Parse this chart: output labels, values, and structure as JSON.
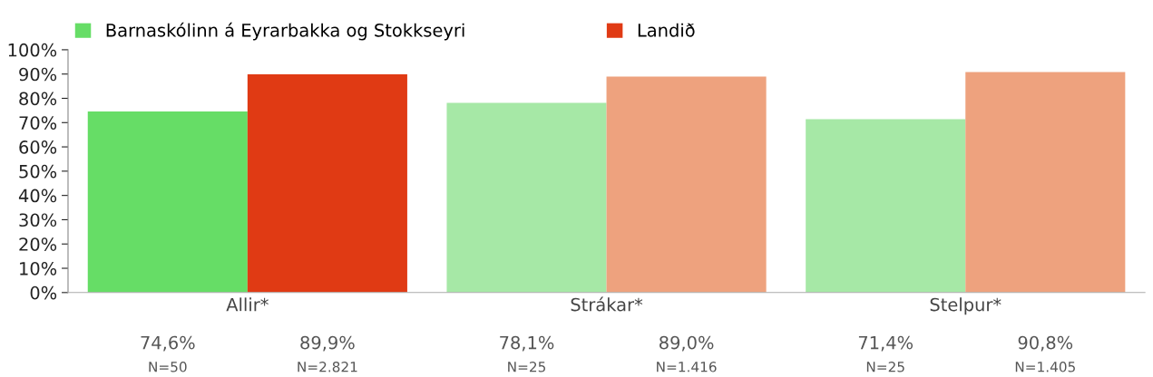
{
  "chart_data": {
    "type": "bar",
    "categories": [
      "Allir*",
      "Strákar*",
      "Stelpur*"
    ],
    "series": [
      {
        "name": "Barnaskólinn á Eyrarbakka og Stokkseyri",
        "color": "#66dd66",
        "colors": [
          "#66dd66",
          "#a6e8a6",
          "#a6e8a6"
        ],
        "values": [
          74.6,
          78.1,
          71.4
        ],
        "value_labels": [
          "74,6%\nN=50",
          "78,1%\nN=25",
          "71,4%\nN=25"
        ]
      },
      {
        "name": "Landið",
        "color": "#e03a14",
        "colors": [
          "#e03a14",
          "#eea27e",
          "#eea27e"
        ],
        "values": [
          89.9,
          89.0,
          90.8
        ],
        "value_labels": [
          "89,9%\nN=2.821",
          "89,0%\nN=1.416",
          "90,8%\nN=1.405"
        ]
      }
    ],
    "ylim": [
      0,
      100
    ],
    "yticks": [
      {
        "value": 0,
        "label": "0%"
      },
      {
        "value": 10,
        "label": "10%"
      },
      {
        "value": 20,
        "label": "20%"
      },
      {
        "value": 30,
        "label": "30%"
      },
      {
        "value": 40,
        "label": "40%"
      },
      {
        "value": 50,
        "label": "50%"
      },
      {
        "value": 60,
        "label": "60%"
      },
      {
        "value": 70,
        "label": "70%"
      },
      {
        "value": 80,
        "label": "80%"
      },
      {
        "value": 90,
        "label": "90%"
      },
      {
        "value": 100,
        "label": "100%"
      }
    ],
    "grid": false,
    "legend": "top left"
  }
}
